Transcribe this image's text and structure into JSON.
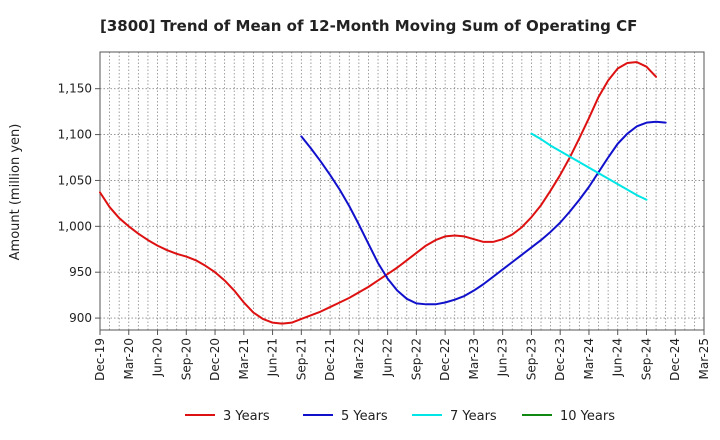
{
  "chart_data": {
    "type": "line",
    "title": "[3800]  Trend of Mean of 12-Month Moving Sum of Operating CF",
    "xlabel": "",
    "ylabel": "Amount (million yen)",
    "ylim": [
      887,
      1190
    ],
    "yticks": [
      900,
      950,
      1000,
      1050,
      1100,
      1150
    ],
    "ytick_labels": [
      "900",
      "950",
      "1,000",
      "1,050",
      "1,100",
      "1,150"
    ],
    "x_tick_labels": [
      "Dec-19",
      "Mar-20",
      "Jun-20",
      "Sep-20",
      "Dec-20",
      "Mar-21",
      "Jun-21",
      "Sep-21",
      "Dec-21",
      "Mar-22",
      "Jun-22",
      "Sep-22",
      "Dec-22",
      "Mar-23",
      "Jun-23",
      "Sep-23",
      "Dec-23",
      "Mar-24",
      "Jun-24",
      "Sep-24",
      "Dec-24",
      "Mar-25"
    ],
    "grid": true,
    "legend_position": "bottom",
    "series": [
      {
        "name": "3 Years",
        "color": "#dd1111",
        "start_index": 0,
        "values": [
          1037,
          1021,
          1009,
          1000,
          992,
          985,
          979,
          974,
          970,
          967,
          963,
          957,
          950,
          941,
          930,
          917,
          906,
          899,
          895,
          894,
          895,
          899,
          903,
          907,
          912,
          917,
          922,
          928,
          934,
          941,
          948,
          955,
          963,
          971,
          979,
          985,
          989,
          990,
          989,
          986,
          983,
          983,
          986,
          991,
          999,
          1010,
          1023,
          1039,
          1056,
          1075,
          1096,
          1118,
          1141,
          1159,
          1172,
          1178,
          1179,
          1174,
          1163
        ]
      },
      {
        "name": "5 Years",
        "color": "#1111cc",
        "start_index": 21,
        "values": [
          1098,
          1085,
          1071,
          1056,
          1040,
          1022,
          1002,
          981,
          960,
          943,
          930,
          921,
          916,
          915,
          915,
          917,
          920,
          924,
          930,
          937,
          945,
          953,
          961,
          969,
          977,
          985,
          994,
          1004,
          1016,
          1029,
          1043,
          1059,
          1075,
          1090,
          1101,
          1109,
          1113,
          1114,
          1113
        ]
      },
      {
        "name": "7 Years",
        "color": "#00e5e5",
        "start_index": 45,
        "values": [
          1101,
          1095,
          1088,
          1082,
          1076,
          1070,
          1064,
          1058,
          1052,
          1046,
          1040,
          1034,
          1029
        ]
      },
      {
        "name": "10 Years",
        "color": "#118811",
        "start_index": 0,
        "values": []
      }
    ]
  }
}
